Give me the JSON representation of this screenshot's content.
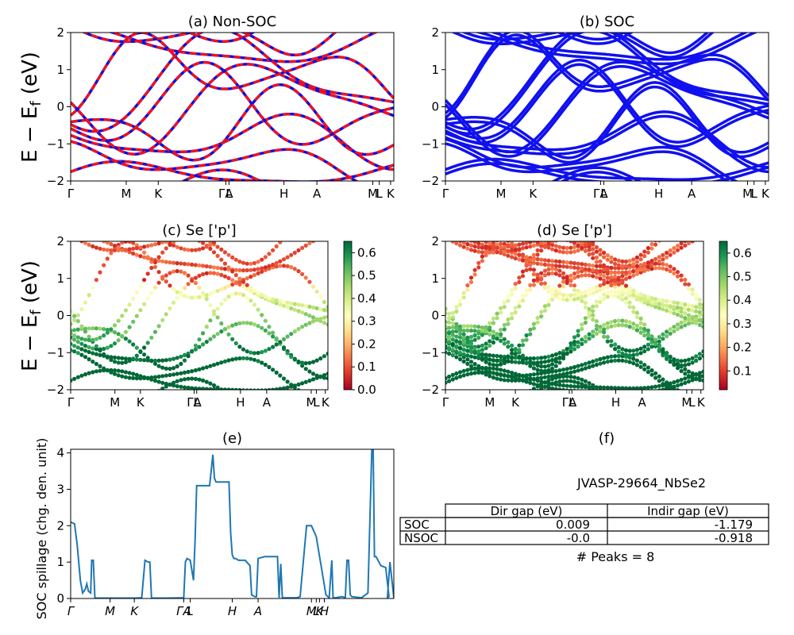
{
  "figure": {
    "ylabel_main": "E − E_f (eV)"
  },
  "chart_data": [
    {
      "id": "a",
      "type": "line",
      "title": "(a) Non-SOC",
      "ylim": [
        -2,
        2
      ],
      "yticks": [
        -2,
        -1,
        0,
        1,
        2
      ],
      "xticks": [
        "Γ",
        "M",
        "K",
        "ΓA",
        "L",
        "H",
        "A",
        "M",
        "L",
        "K"
      ],
      "series": [
        {
          "color": "#1010e0",
          "style": "solid"
        },
        {
          "color": "#ff1010",
          "style": "dashed"
        }
      ]
    },
    {
      "id": "b",
      "type": "line",
      "title": "(b) SOC",
      "ylim": [
        -2,
        2
      ],
      "yticks": [
        -2,
        -1,
        0,
        1,
        2
      ],
      "xticks": [
        "Γ",
        "M",
        "K",
        "ΓA",
        "L",
        "H",
        "A",
        "M",
        "L",
        "K"
      ],
      "series": [
        {
          "color": "#1010f0",
          "style": "solid"
        }
      ]
    },
    {
      "id": "c",
      "type": "scatter",
      "title": "(c)  Se ['p']",
      "ylim": [
        -2,
        2
      ],
      "yticks": [
        -2,
        -1,
        0,
        1,
        2
      ],
      "xticks": [
        "Γ",
        "M",
        "K",
        "ΓA",
        "L",
        "H",
        "A",
        "M",
        "L",
        "K"
      ],
      "colorbar": {
        "range": [
          0.0,
          0.65
        ],
        "ticks": [
          "0.0",
          "0.1",
          "0.2",
          "0.3",
          "0.4",
          "0.5",
          "0.6"
        ],
        "colormap": "RdYlGn"
      }
    },
    {
      "id": "d",
      "type": "scatter",
      "title": "(d) Se ['p']",
      "ylim": [
        -2,
        2
      ],
      "yticks": [
        -2,
        -1,
        0,
        1,
        2
      ],
      "xticks": [
        "Γ",
        "M",
        "K",
        "ΓA",
        "L",
        "H",
        "A",
        "M",
        "L",
        "K"
      ],
      "colorbar": {
        "range": [
          0.02,
          0.65
        ],
        "ticks": [
          "0.1",
          "0.2",
          "0.3",
          "0.4",
          "0.5",
          "0.6"
        ],
        "colormap": "RdYlGn"
      }
    },
    {
      "id": "e",
      "type": "line",
      "title": "(e)",
      "ylabel": "SOC spillage (chg. den. unit)",
      "ylim": [
        0,
        4.1
      ],
      "yticks": [
        0,
        1,
        2,
        3,
        4
      ],
      "xticks": [
        "Γ",
        "M",
        "K",
        "ΓA",
        "L",
        "H",
        "A",
        "M",
        "L",
        "K",
        "H"
      ],
      "series": [
        {
          "color": "#1f77b4",
          "x": [
            0.0,
            0.012,
            0.02,
            0.03,
            0.037,
            0.045,
            0.05,
            0.055,
            0.062,
            0.065,
            0.07,
            0.075,
            0.08,
            0.1,
            0.13,
            0.16,
            0.2,
            0.22,
            0.23,
            0.24,
            0.245,
            0.25,
            0.255,
            0.26,
            0.3,
            0.35,
            0.355,
            0.36,
            0.37,
            0.38,
            0.385,
            0.39,
            0.4,
            0.43,
            0.44,
            0.445,
            0.45,
            0.49,
            0.495,
            0.5,
            0.505,
            0.51,
            0.52,
            0.54,
            0.555,
            0.56,
            0.57,
            0.575,
            0.58,
            0.6,
            0.64,
            0.645,
            0.65,
            0.655,
            0.66,
            0.67,
            0.68,
            0.7,
            0.71,
            0.73,
            0.74,
            0.742,
            0.745,
            0.76,
            0.79,
            0.8,
            0.808,
            0.812,
            0.82,
            0.84,
            0.85,
            0.855,
            0.86,
            0.865,
            0.87,
            0.9,
            0.92,
            0.932,
            0.936,
            0.94,
            0.945,
            0.96,
            0.975,
            0.985,
            0.98,
            0.988,
            1.0
          ],
          "y": [
            2.1,
            2.05,
            1.5,
            0.5,
            0.15,
            0.25,
            0.4,
            0.2,
            0.15,
            1.05,
            1.05,
            0.02,
            0.01,
            0.01,
            0.01,
            0.01,
            0.01,
            0.02,
            1.05,
            1.0,
            1.0,
            0.02,
            0.01,
            0.01,
            0.01,
            0.02,
            1.0,
            1.1,
            1.05,
            0.5,
            1.6,
            3.1,
            3.1,
            3.1,
            3.95,
            3.3,
            3.2,
            3.2,
            1.8,
            1.2,
            1.1,
            1.1,
            1.05,
            1.05,
            0.9,
            0.1,
            0.05,
            0.05,
            1.1,
            1.15,
            1.15,
            0.02,
            0.95,
            0.02,
            0.02,
            0.02,
            0.02,
            0.02,
            0.05,
            2.0,
            2.0,
            2.0,
            2.0,
            1.7,
            0.1,
            0.02,
            1.05,
            0.02,
            0.02,
            0.05,
            0.02,
            1.05,
            1.05,
            0.1,
            0.05,
            0.02,
            0.15,
            4.1,
            4.1,
            1.15,
            1.15,
            0.9,
            0.85,
            0.05,
            0.02,
            1.0,
            0.02
          ]
        }
      ]
    },
    {
      "id": "f",
      "type": "table",
      "title": "(f)",
      "subtitle": "JVASP-29664_NbSe2",
      "columns": [
        "",
        "Dir gap (eV)",
        "Indir gap (eV)"
      ],
      "rows": [
        [
          "SOC",
          "0.009",
          "-1.179"
        ],
        [
          "NSOC",
          "-0.0",
          "-0.918"
        ]
      ],
      "footer": "# Peaks = 8"
    }
  ]
}
